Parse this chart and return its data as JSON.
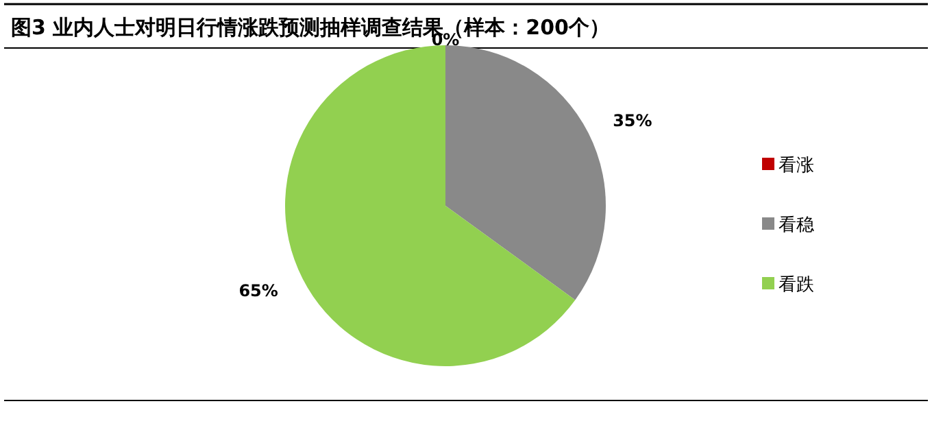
{
  "chart_data": {
    "type": "pie",
    "title": "图3 业内人士对明日行情涨跌预测抽样调查结果（样本：200个）",
    "categories": [
      "看涨",
      "看稳",
      "看跌"
    ],
    "values": [
      0,
      35,
      65
    ],
    "colors": [
      "#c00000",
      "#898989",
      "#92d050"
    ],
    "value_labels": [
      "0%",
      "35%",
      "65%"
    ],
    "legend": "right"
  }
}
